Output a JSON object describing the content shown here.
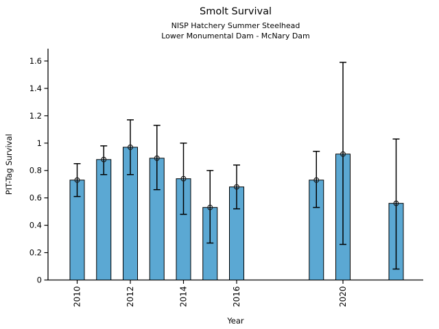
{
  "chart_data": {
    "type": "bar",
    "title": "Smolt Survival",
    "subtitle1": "NISP Hatchery Summer Steelhead",
    "subtitle2": "Lower Monumental Dam - McNary Dam",
    "xlabel": "Year",
    "ylabel": "PIT-Tag Survival",
    "categories": [
      2010,
      2011,
      2012,
      2013,
      2014,
      2015,
      2016,
      2019,
      2020,
      2022
    ],
    "values": [
      0.73,
      0.88,
      0.97,
      0.89,
      0.74,
      0.53,
      0.68,
      0.73,
      0.92,
      0.56
    ],
    "error_low": [
      0.61,
      0.77,
      0.77,
      0.66,
      0.48,
      0.27,
      0.52,
      0.53,
      0.26,
      0.08
    ],
    "error_high": [
      0.85,
      0.98,
      1.17,
      1.13,
      1.0,
      0.8,
      0.84,
      0.94,
      1.59,
      1.03
    ],
    "x_ticks": [
      "2010",
      "2012",
      "2014",
      "2016",
      "2020"
    ],
    "x_tick_values": [
      2010,
      2012,
      2014,
      2016,
      2020
    ],
    "y_ticks": [
      "0",
      "0.2",
      "0.4",
      "0.6",
      "0.8",
      "1",
      "1.2",
      "1.4",
      "1.6"
    ],
    "y_tick_values": [
      0,
      0.2,
      0.4,
      0.6,
      0.8,
      1.0,
      1.2,
      1.4,
      1.6
    ],
    "ylim": [
      0,
      1.68
    ],
    "xlim": [
      2008.9,
      2023.05
    ],
    "grid": false,
    "legend": null,
    "marker": "open-circle",
    "bar_color": "#5BA8D3",
    "bar_edge_color": "#000000",
    "error_color": "#000000",
    "text_color": "#000000"
  }
}
